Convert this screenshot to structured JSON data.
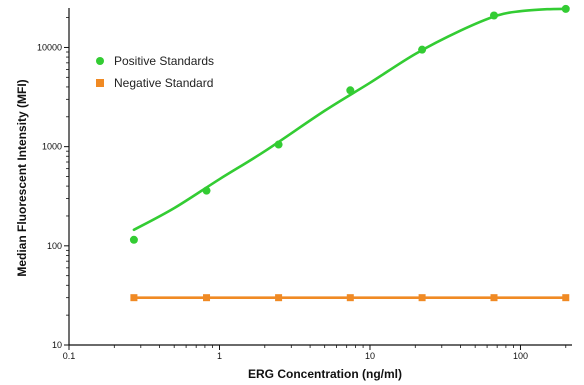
{
  "chart_data": {
    "type": "scatter",
    "title": "",
    "xlabel": "ERG Concentration (ng/ml)",
    "ylabel": "Median Fluorescent Intensity (MFI)",
    "xscale": "log",
    "yscale": "log",
    "xlim": [
      0.1,
      220
    ],
    "ylim": [
      10,
      25000
    ],
    "x_ticks": [
      0.1,
      1,
      10,
      100
    ],
    "x_tick_labels": [
      "0.1",
      "1",
      "10",
      "100"
    ],
    "y_ticks": [
      10,
      100,
      1000,
      10000
    ],
    "y_tick_labels": [
      "10",
      "100",
      "1000",
      "10000"
    ],
    "grid": false,
    "legend_position": "top-left",
    "series": [
      {
        "name": "Positive Standards",
        "color": "#33cc33",
        "marker": "circle",
        "points": [
          {
            "x": 0.27,
            "y": 115
          },
          {
            "x": 0.82,
            "y": 360
          },
          {
            "x": 2.47,
            "y": 1050
          },
          {
            "x": 7.4,
            "y": 3700
          },
          {
            "x": 22.2,
            "y": 9500
          },
          {
            "x": 66.7,
            "y": 21000
          },
          {
            "x": 200,
            "y": 24500
          }
        ],
        "fit_curve": [
          {
            "x": 0.27,
            "y": 145
          },
          {
            "x": 0.5,
            "y": 240
          },
          {
            "x": 1,
            "y": 470
          },
          {
            "x": 2,
            "y": 900
          },
          {
            "x": 5,
            "y": 2300
          },
          {
            "x": 10,
            "y": 4400
          },
          {
            "x": 20,
            "y": 8600
          },
          {
            "x": 40,
            "y": 14800
          },
          {
            "x": 70,
            "y": 21000
          },
          {
            "x": 100,
            "y": 23200
          },
          {
            "x": 150,
            "y": 24300
          },
          {
            "x": 200,
            "y": 24500
          }
        ]
      },
      {
        "name": "Negative Standard",
        "color": "#f08a24",
        "marker": "square",
        "points": [
          {
            "x": 0.27,
            "y": 30
          },
          {
            "x": 0.82,
            "y": 30
          },
          {
            "x": 2.47,
            "y": 30
          },
          {
            "x": 7.4,
            "y": 30
          },
          {
            "x": 22.2,
            "y": 30
          },
          {
            "x": 66.7,
            "y": 30
          },
          {
            "x": 200,
            "y": 30
          }
        ]
      }
    ]
  }
}
